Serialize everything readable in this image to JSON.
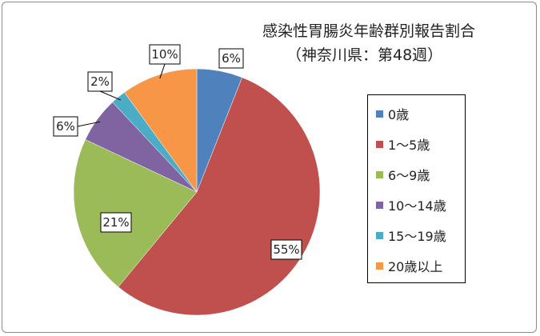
{
  "chart_data": {
    "type": "pie",
    "title": "感染性胃腸炎年齢群別報告割合",
    "subtitle": "（神奈川県：第48週）",
    "slices": [
      {
        "label": "0歳",
        "value": 6,
        "display": "6%",
        "color": "#4f81bd"
      },
      {
        "label": "1～5歳",
        "value": 55,
        "display": "55%",
        "color": "#c0504d"
      },
      {
        "label": "6～9歳",
        "value": 21,
        "display": "21%",
        "color": "#9bbb59"
      },
      {
        "label": "10～14歳",
        "value": 6,
        "display": "6%",
        "color": "#8064a2"
      },
      {
        "label": "15～19歳",
        "value": 2,
        "display": "2%",
        "color": "#4bacc6"
      },
      {
        "label": "20歳以上",
        "value": 10,
        "display": "10%",
        "color": "#f79646"
      }
    ],
    "legend_position": "right"
  }
}
